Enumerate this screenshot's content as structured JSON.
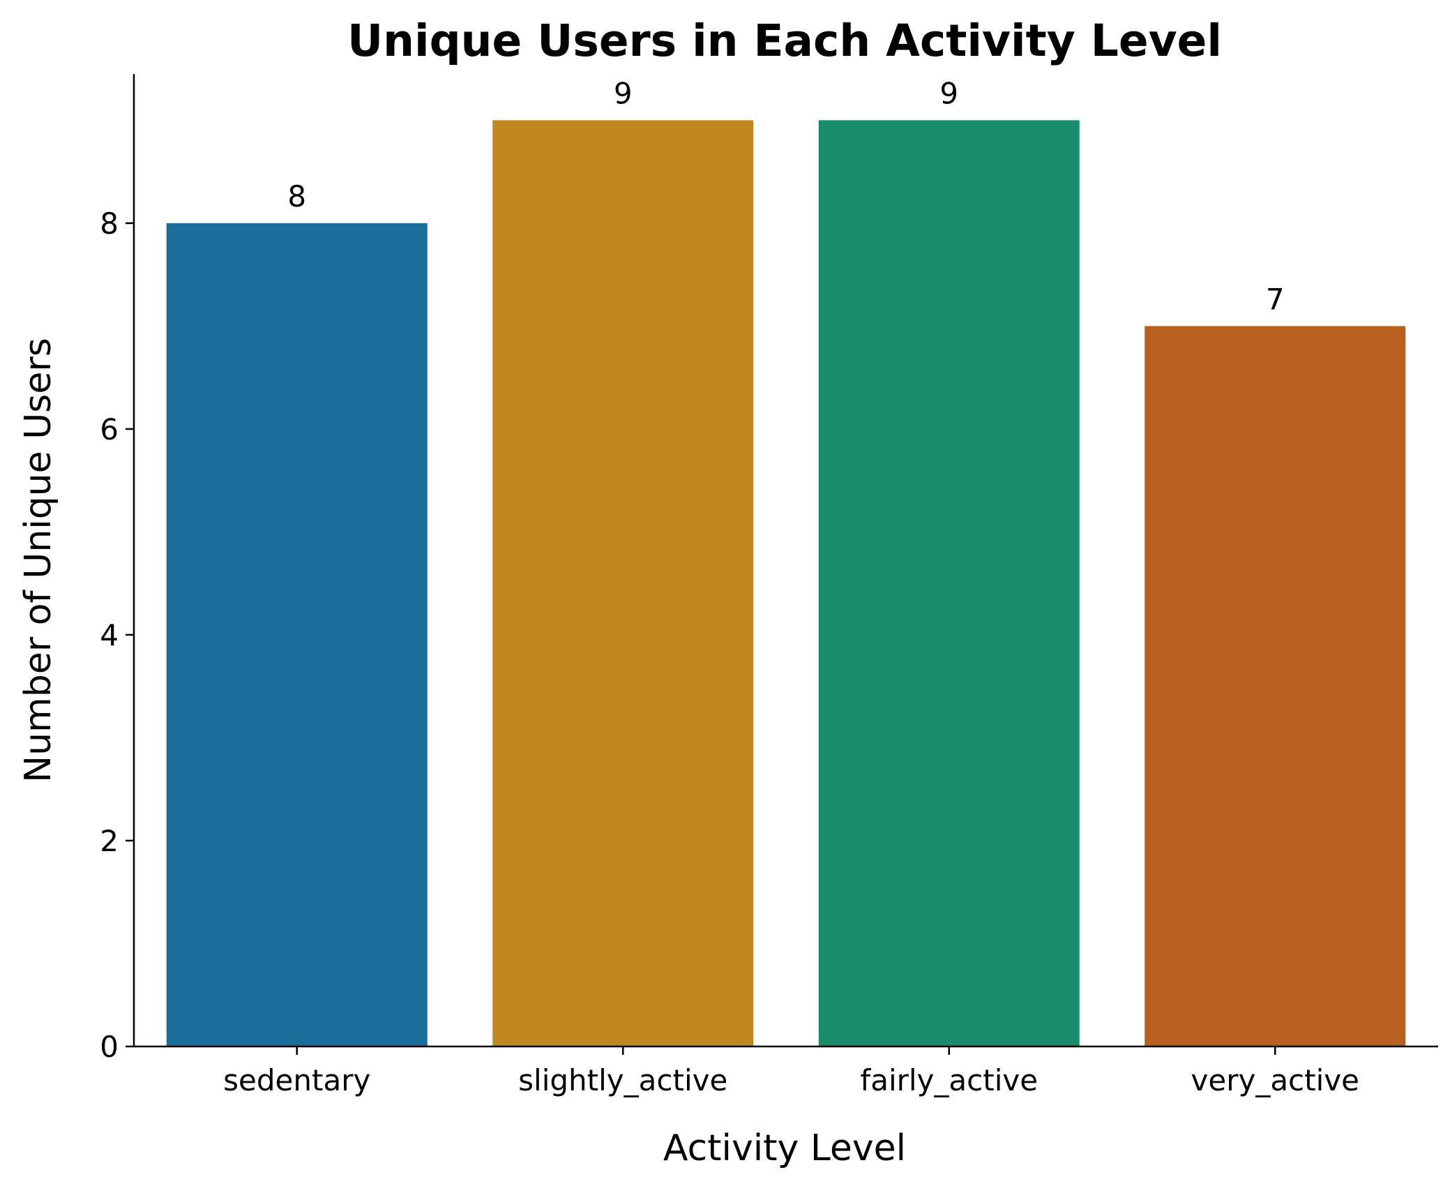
{
  "chart_data": {
    "type": "bar",
    "title": "Unique Users in Each Activity Level",
    "xlabel": "Activity Level",
    "ylabel": "Number of Unique Users",
    "categories": [
      "sedentary",
      "slightly_active",
      "fairly_active",
      "very_active"
    ],
    "values": [
      8,
      9,
      9,
      7
    ],
    "data_labels": [
      "8",
      "9",
      "9",
      "7"
    ],
    "colors": [
      "#1a6e9c",
      "#c18820",
      "#178d6b",
      "#b8611e"
    ],
    "y_ticks": [
      0,
      2,
      4,
      6,
      8
    ],
    "y_tick_labels": [
      "0",
      "2",
      "4",
      "6",
      "8"
    ],
    "ylim": [
      0,
      9.45
    ],
    "grid": false,
    "legend": "none",
    "spines": [
      "left",
      "bottom"
    ]
  }
}
